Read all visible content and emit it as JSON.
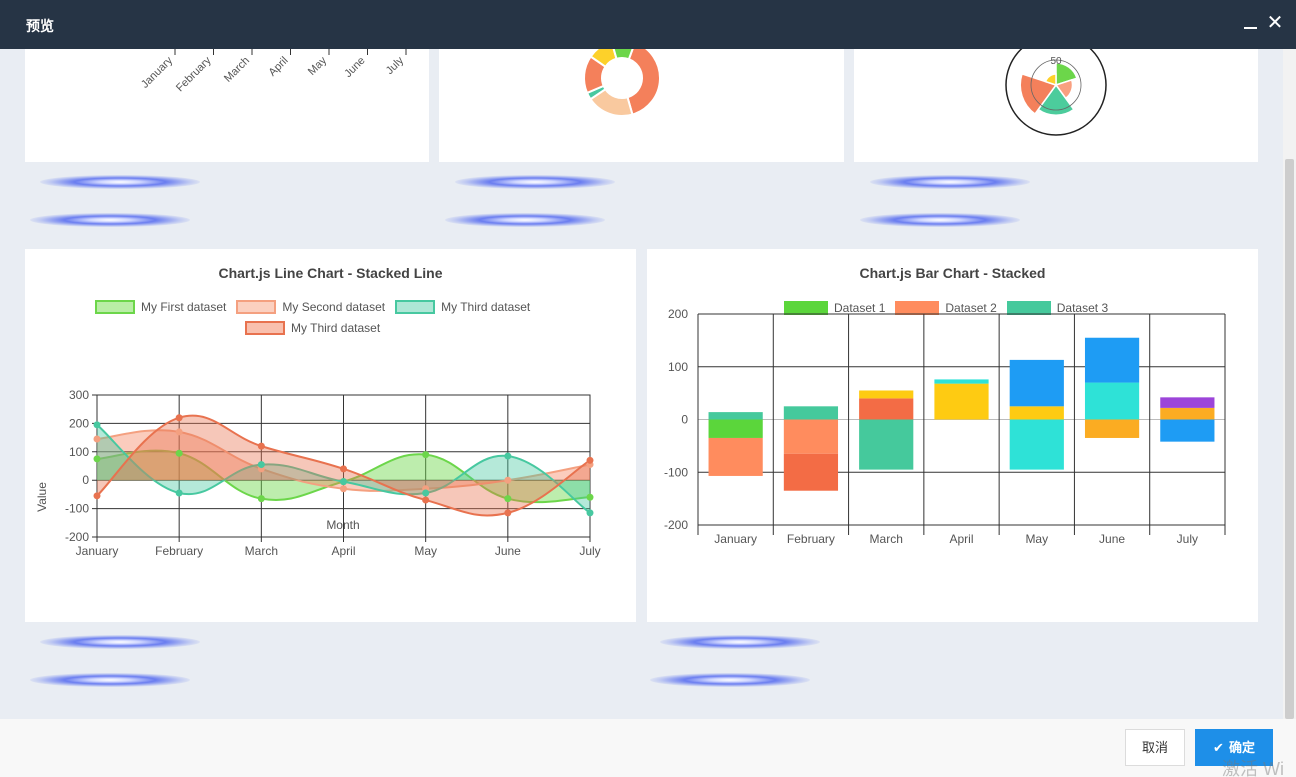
{
  "window": {
    "title": "预览"
  },
  "footer": {
    "cancel_label": "取消",
    "ok_label": "确定",
    "watermark": "激活 Wi"
  },
  "top_line_chart": {
    "tick_labels": [
      "January",
      "February",
      "March",
      "April",
      "May",
      "June",
      "July"
    ]
  },
  "top_doughnut": {
    "segments": [
      {
        "value": 40,
        "color": "#f4805b"
      },
      {
        "value": 20,
        "color": "#f9c99f"
      },
      {
        "value": 3,
        "color": "#47c8a0"
      },
      {
        "value": 16,
        "color": "#f4805b"
      },
      {
        "value": 11,
        "color": "#fdd12a"
      },
      {
        "value": 10,
        "color": "#6cd64a"
      }
    ]
  },
  "top_polar": {
    "tick_label": "50",
    "segments": [
      {
        "value": 40,
        "color": "#6cd64a"
      },
      {
        "value": 30,
        "color": "#f9a080"
      },
      {
        "value": 55,
        "color": "#4ccc9c"
      },
      {
        "value": 65,
        "color": "#f4805b"
      },
      {
        "value": 20,
        "color": "#fdd12a"
      }
    ]
  },
  "line_chart": {
    "title": "Chart.js Line Chart - Stacked Line",
    "legend": [
      {
        "label": "My First dataset",
        "fill": "#b9eea6",
        "border": "#6cd64a"
      },
      {
        "label": "My Second dataset",
        "fill": "#fbd0c0",
        "border": "#f4a080"
      },
      {
        "label": "My Third dataset",
        "fill": "#aee7d6",
        "border": "#47c8a0"
      },
      {
        "label": "My Third dataset",
        "fill": "#f9c0ae",
        "border": "#e8724f"
      }
    ],
    "xlabel": "Month",
    "ylabel": "Value",
    "y_ticks": [
      "300",
      "200",
      "100",
      "0",
      "-100",
      "-200"
    ],
    "x_ticks": [
      "January",
      "February",
      "March",
      "April",
      "May",
      "June",
      "July"
    ]
  },
  "bar_chart": {
    "title": "Chart.js Bar Chart - Stacked",
    "legend": [
      {
        "label": "Dataset 1",
        "color": "#5bd63b"
      },
      {
        "label": "Dataset 2",
        "color": "#ff8c5e"
      },
      {
        "label": "Dataset 3",
        "color": "#45c99c"
      }
    ],
    "y_ticks": [
      "200",
      "100",
      "0",
      "-100",
      "-200"
    ],
    "x_ticks": [
      "January",
      "February",
      "March",
      "April",
      "May",
      "June",
      "July"
    ]
  },
  "chart_data": [
    {
      "type": "line",
      "title": "Chart.js Line Chart - Stacked Line",
      "xlabel": "Month",
      "ylabel": "Value",
      "ylim": [
        -200,
        300
      ],
      "categories": [
        "January",
        "February",
        "March",
        "April",
        "May",
        "June",
        "July"
      ],
      "series": [
        {
          "name": "My First dataset",
          "color": "#6cd64a",
          "fill": "rgba(108,214,74,0.45)",
          "values": [
            75,
            95,
            -65,
            -5,
            90,
            -65,
            -60
          ]
        },
        {
          "name": "My Second dataset",
          "color": "#f4a080",
          "fill": "rgba(244,128,91,0.40)",
          "values": [
            145,
            170,
            40,
            -30,
            -30,
            0,
            55
          ]
        },
        {
          "name": "My Third dataset",
          "color": "#47c8a0",
          "fill": "rgba(71,200,160,0.40)",
          "values": [
            195,
            -45,
            55,
            -5,
            -45,
            85,
            -115
          ]
        },
        {
          "name": "My Third dataset",
          "color": "#e8724f",
          "fill": "rgba(232,114,79,0.40)",
          "values": [
            -55,
            220,
            120,
            40,
            -70,
            -115,
            70
          ]
        }
      ]
    },
    {
      "type": "bar",
      "title": "Chart.js Bar Chart - Stacked",
      "ylim": [
        -200,
        200
      ],
      "categories": [
        "January",
        "February",
        "March",
        "April",
        "May",
        "June",
        "July"
      ],
      "stacks": [
        [
          {
            "v": -35,
            "c": "#5bd63b"
          },
          {
            "v": -72,
            "c": "#ff8c5e"
          },
          {
            "v": 14,
            "c": "#45c99c"
          }
        ],
        [
          {
            "v": -65,
            "c": "#ff8c5e"
          },
          {
            "v": -70,
            "c": "#f36c45"
          },
          {
            "v": 25,
            "c": "#45c99c"
          }
        ],
        [
          {
            "v": -95,
            "c": "#45c99c"
          },
          {
            "v": 40,
            "c": "#f36c45"
          },
          {
            "v": 15,
            "c": "#fecb12"
          }
        ],
        [
          {
            "v": 68,
            "c": "#fecb12"
          },
          {
            "v": 8,
            "c": "#2ee2d7"
          }
        ],
        [
          {
            "v": -95,
            "c": "#2ee2d7"
          },
          {
            "v": 25,
            "c": "#fecb12"
          },
          {
            "v": 88,
            "c": "#1e9cf4"
          }
        ],
        [
          {
            "v": -35,
            "c": "#fbac22"
          },
          {
            "v": 70,
            "c": "#2ee2d7"
          },
          {
            "v": 85,
            "c": "#1e9cf4"
          }
        ],
        [
          {
            "v": -42,
            "c": "#1e9cf4"
          },
          {
            "v": 22,
            "c": "#fbac22"
          },
          {
            "v": 20,
            "c": "#9c45d9"
          }
        ]
      ]
    }
  ]
}
